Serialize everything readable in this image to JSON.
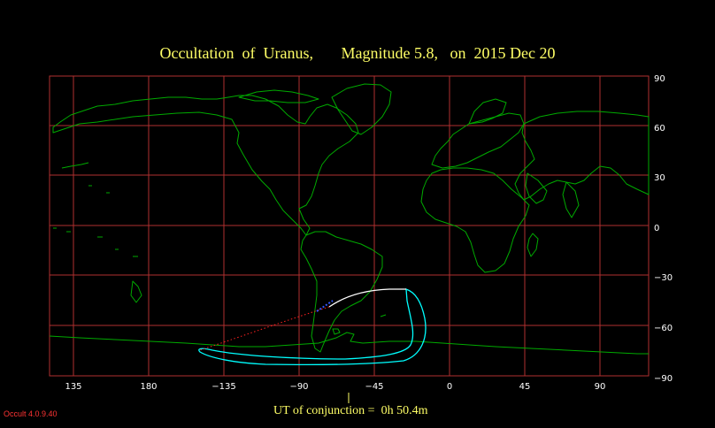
{
  "title": "Occultation  of  Uranus,       Magnitude 5.8,   on  2015 Dec 20",
  "lon_ticks": [
    "135",
    "180",
    "−135",
    "−90",
    "−45",
    "0",
    "45",
    "90"
  ],
  "lat_ticks": [
    "90",
    "60",
    "30",
    "0",
    "−30",
    "−60",
    "−90"
  ],
  "ut_label": "UT of conjunction =  0h 50.4m",
  "version": "Occult 4.0.9.40",
  "colors": {
    "grid": "#b03030",
    "coast": "#00aa00",
    "path_south_limit": "#00ffff",
    "path_north_limit": "#ffffff",
    "extension": "#ff2020",
    "title": "#ffff66"
  }
}
